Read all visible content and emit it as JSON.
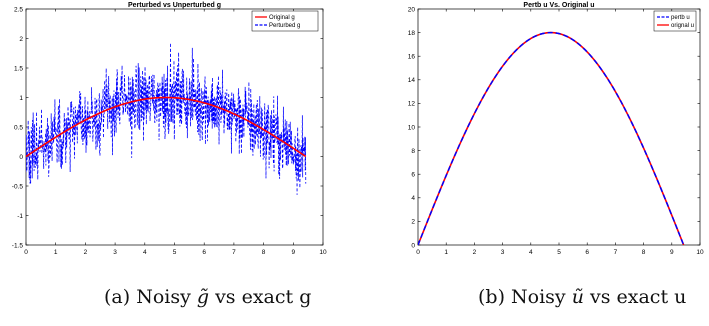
{
  "chart_data": [
    {
      "type": "line",
      "title": "Perturbed vs Unperturbed g",
      "xlim": [
        0,
        10
      ],
      "ylim": [
        -1.5,
        2.5
      ],
      "xticks": [
        "0",
        "1",
        "2",
        "3",
        "4",
        "5",
        "6",
        "7",
        "8",
        "9",
        "10"
      ],
      "yticks": [
        "-1.5",
        "-1",
        "-0.5",
        "0",
        "0.5",
        "1",
        "1.5",
        "2",
        "2.5"
      ],
      "grid": false,
      "legend_position": "top-right",
      "series": [
        {
          "name": "Original g",
          "style": "solid",
          "color": "#ff0000",
          "function": "sin(pi*x/9.42)",
          "x_range": [
            0,
            9.42
          ]
        },
        {
          "name": "Perturbed g",
          "style": "dashed",
          "color": "#0000ff",
          "function": "noisy sin(pi*x/9.42)",
          "x_range": [
            0,
            9.42
          ]
        }
      ]
    },
    {
      "type": "line",
      "title": "Pertb u Vs. Original u",
      "xlim": [
        0,
        10
      ],
      "ylim": [
        0,
        20
      ],
      "xticks": [
        "0",
        "1",
        "2",
        "3",
        "4",
        "5",
        "6",
        "7",
        "8",
        "9",
        "10"
      ],
      "yticks": [
        "0",
        "2",
        "4",
        "6",
        "8",
        "10",
        "12",
        "14",
        "16",
        "18",
        "20"
      ],
      "grid": false,
      "legend_position": "top-right",
      "series": [
        {
          "name": "pertb u",
          "style": "dashed",
          "color": "#0000ff",
          "function": "18*sin(pi*x/9.42)",
          "x_range": [
            0,
            9.42
          ]
        },
        {
          "name": "orignal u",
          "style": "solid",
          "color": "#ff0000",
          "function": "18*sin(pi*x/9.42)",
          "x_range": [
            0,
            9.42
          ]
        }
      ]
    }
  ],
  "captions": {
    "a_prefix": "(a) Noisy ",
    "a_symbol": "g̃",
    "a_suffix": " vs exact g",
    "b_prefix": "(b) Noisy ",
    "b_symbol": "ũ",
    "b_suffix": " vs exact u"
  }
}
